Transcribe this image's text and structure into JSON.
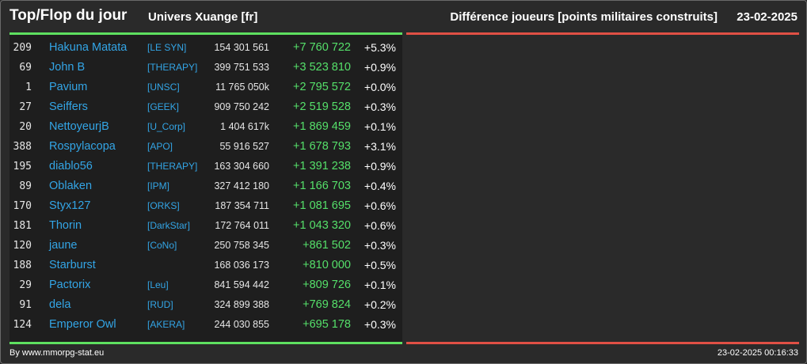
{
  "header": {
    "title": "Top/Flop du jour",
    "universe": "Univers Xuange [fr]",
    "subtitle": "Différence joueurs [points militaires construits]",
    "date": "23-02-2025"
  },
  "colors": {
    "background": "#2a2a2a",
    "panel_dark": "#1e1e1e",
    "top_accent": "#5ee060",
    "flop_accent": "#e05045",
    "player_link": "#33a5e6",
    "gain": "#55e06a"
  },
  "top_rows": [
    {
      "rank": "209",
      "name": "Hakuna Matata",
      "alliance": "[LE SYN]",
      "points": "154 301 561",
      "diff": "+7 760 722",
      "pct": "+5.3%"
    },
    {
      "rank": "69",
      "name": "John B",
      "alliance": "[THERAPY]",
      "points": "399 751 533",
      "diff": "+3 523 810",
      "pct": "+0.9%"
    },
    {
      "rank": "1",
      "name": "Pavium",
      "alliance": "[UNSC]",
      "points": "11 765 050k",
      "diff": "+2 795 572",
      "pct": "+0.0%"
    },
    {
      "rank": "27",
      "name": "Seiffers",
      "alliance": "[GEEK]",
      "points": "909 750 242",
      "diff": "+2 519 528",
      "pct": "+0.3%"
    },
    {
      "rank": "20",
      "name": "NettoyeurjB",
      "alliance": "[U_Corp]",
      "points": "1 404 617k",
      "diff": "+1 869 459",
      "pct": "+0.1%"
    },
    {
      "rank": "388",
      "name": "Rospylacopa",
      "alliance": "[APO]",
      "points": "55 916 527",
      "diff": "+1 678 793",
      "pct": "+3.1%"
    },
    {
      "rank": "195",
      "name": "diablo56",
      "alliance": "[THERAPY]",
      "points": "163 304 660",
      "diff": "+1 391 238",
      "pct": "+0.9%"
    },
    {
      "rank": "89",
      "name": "Oblaken",
      "alliance": "[IPM]",
      "points": "327 412 180",
      "diff": "+1 166 703",
      "pct": "+0.4%"
    },
    {
      "rank": "170",
      "name": "Styx127",
      "alliance": "[ORKS]",
      "points": "187 354 711",
      "diff": "+1 081 695",
      "pct": "+0.6%"
    },
    {
      "rank": "181",
      "name": "Thorin",
      "alliance": "[DarkStar]",
      "points": "172 764 011",
      "diff": "+1 043 320",
      "pct": "+0.6%"
    },
    {
      "rank": "120",
      "name": "jaune",
      "alliance": "[CoNo]",
      "points": "250 758 345",
      "diff": "+861 502",
      "pct": "+0.3%"
    },
    {
      "rank": "188",
      "name": "Starburst",
      "alliance": "",
      "points": "168 036 173",
      "diff": "+810 000",
      "pct": "+0.5%"
    },
    {
      "rank": "29",
      "name": "Pactorix",
      "alliance": "[Leu]",
      "points": "841 594 442",
      "diff": "+809 726",
      "pct": "+0.1%"
    },
    {
      "rank": "91",
      "name": "dela",
      "alliance": "[RUD]",
      "points": "324 899 388",
      "diff": "+769 824",
      "pct": "+0.2%"
    },
    {
      "rank": "124",
      "name": "Emperor Owl",
      "alliance": "[AKERA]",
      "points": "244 030 855",
      "diff": "+695 178",
      "pct": "+0.3%"
    }
  ],
  "footer": {
    "credit": "By www.mmorpg-stat.eu",
    "timestamp": "23-02-2025 00:16:33"
  }
}
